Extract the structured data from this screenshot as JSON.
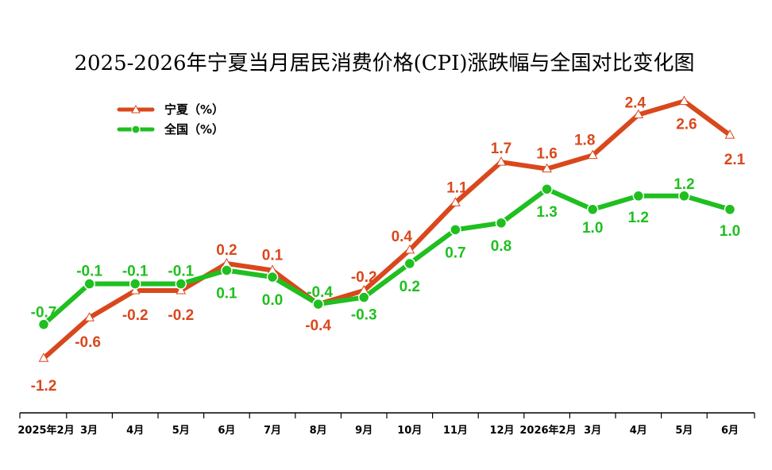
{
  "chart_data": {
    "type": "line",
    "title": "2025-2026年宁夏当月居民消费价格(CPI)涨跌幅与全国对比变化图",
    "xlabel": "",
    "ylabel": "",
    "categories": [
      "2025年2月",
      "3月",
      "4月",
      "5月",
      "6月",
      "7月",
      "8月",
      "9月",
      "10月",
      "11月",
      "12月",
      "2026年2月",
      "3月",
      "4月",
      "5月",
      "6月"
    ],
    "ylim": [
      -2.0,
      3.0
    ],
    "grid": false,
    "legend_position": "top-left",
    "series": [
      {
        "name": "宁夏（%）",
        "color": "#d9481c",
        "marker": "triangle",
        "values": [
          -1.2,
          -0.6,
          -0.2,
          -0.2,
          0.2,
          0.1,
          -0.4,
          -0.2,
          0.4,
          1.1,
          1.7,
          1.6,
          1.8,
          2.4,
          2.6,
          2.1
        ],
        "labels": [
          "-1.2",
          "-0.6",
          "-0.2",
          "-0.2",
          "0.2",
          "0.1",
          "-0.4",
          "-0.2",
          "0.4",
          "1.1",
          "1.7",
          "1.6",
          "1.8",
          "2.4",
          "2.6",
          "2.1"
        ]
      },
      {
        "name": "全国（%）",
        "color": "#1fbf1f",
        "marker": "circle",
        "values": [
          -0.7,
          -0.1,
          -0.1,
          -0.1,
          0.1,
          0.0,
          -0.4,
          -0.3,
          0.2,
          0.7,
          0.8,
          1.3,
          1.0,
          1.2,
          1.2,
          1.0
        ],
        "labels": [
          "-0.7",
          "-0.1",
          "-0.1",
          "-0.1",
          "0.1",
          "0.0",
          "-0.4",
          "-0.3",
          "0.2",
          "0.7",
          "0.8",
          "1.3",
          "1.0",
          "1.2",
          "1.2",
          "1.0"
        ]
      }
    ]
  }
}
